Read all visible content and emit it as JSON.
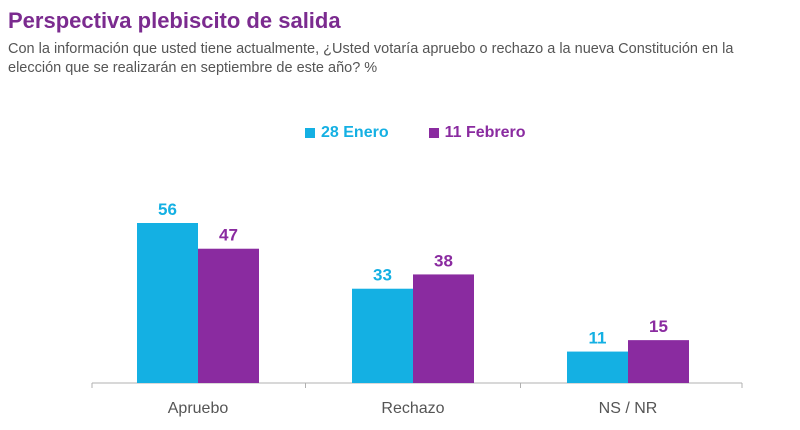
{
  "chart_data": {
    "type": "bar",
    "title": "Perspectiva plebiscito de salida",
    "subtitle": "Con la información que usted tiene actualmente, ¿Usted votaría apruebo o rechazo a la nueva Constitución en la elección que se realizarán en septiembre de este año? %",
    "categories": [
      "Apruebo",
      "Rechazo",
      "NS / NR"
    ],
    "series": [
      {
        "name": "28 Enero",
        "values": [
          56,
          33,
          11
        ],
        "color": "#14b0e3"
      },
      {
        "name": "11 Febrero",
        "values": [
          47,
          38,
          15
        ],
        "color": "#8a2ba0"
      }
    ],
    "ylim": [
      0,
      56
    ],
    "legend_position": "top-center",
    "grid": false
  }
}
